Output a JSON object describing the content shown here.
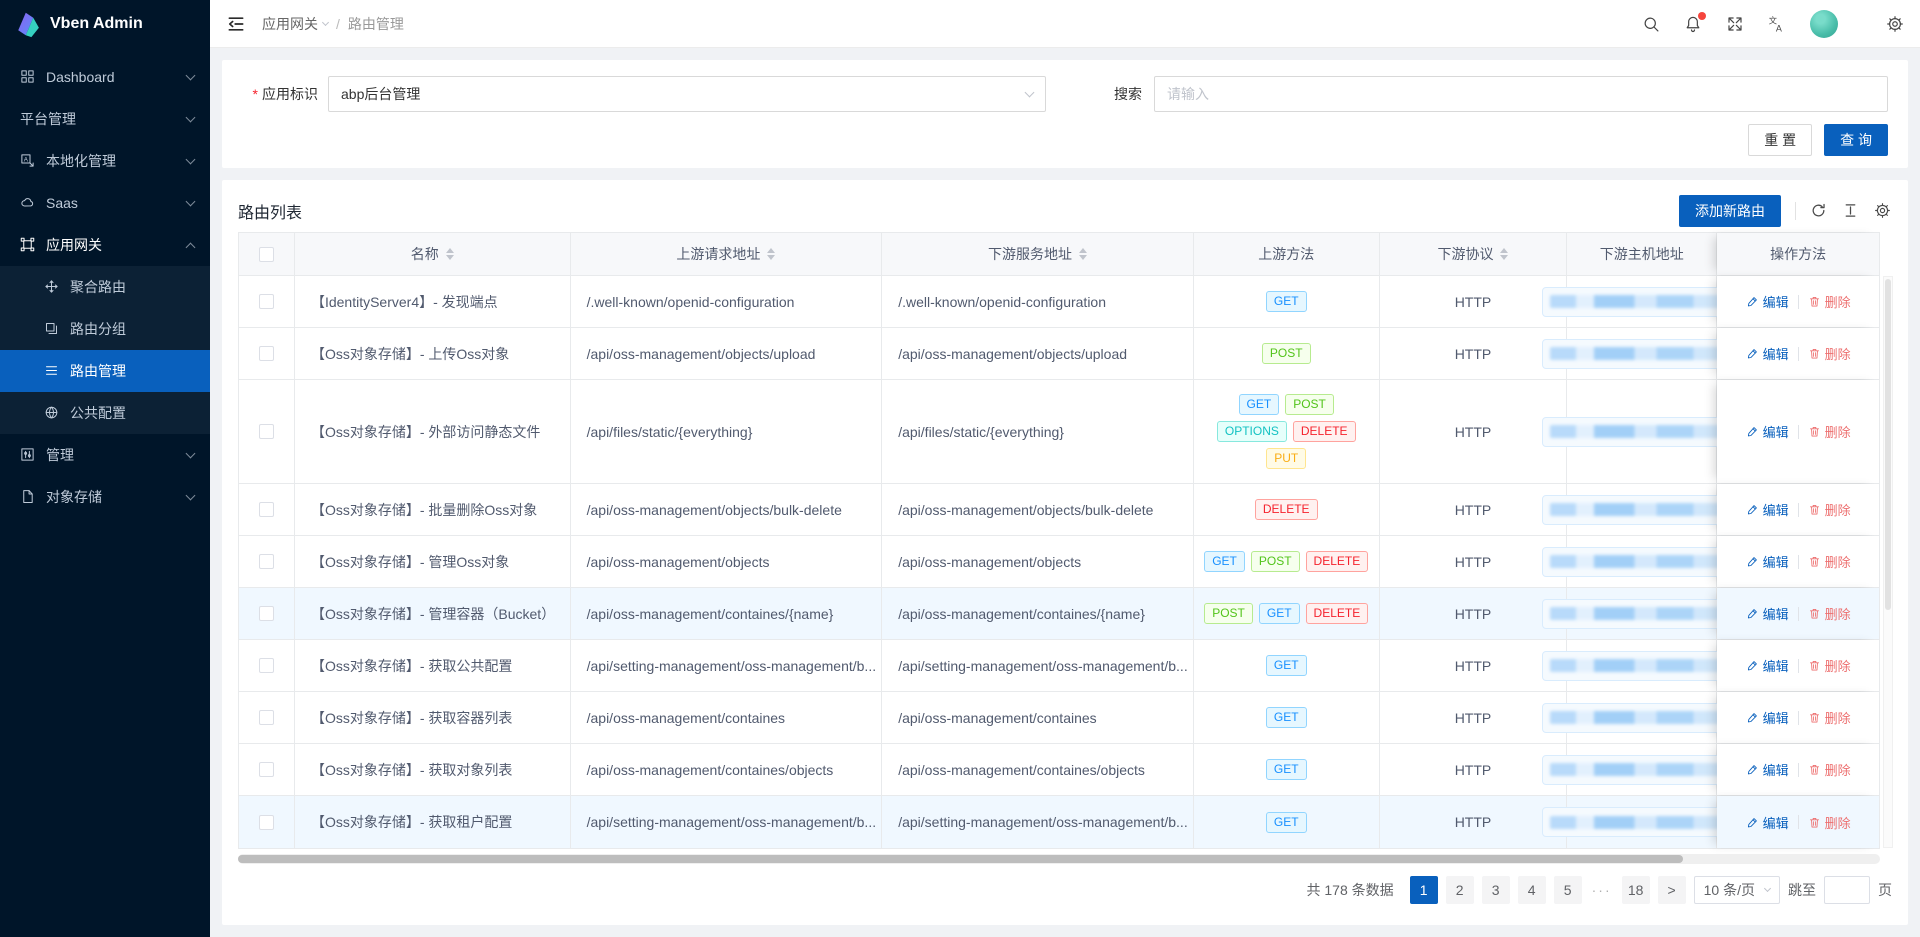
{
  "brand": {
    "name": "Vben Admin"
  },
  "colors": {
    "primary": "#0960bd",
    "danger": "#ed6f6f",
    "sidebar_bg": "#001529",
    "submenu_bg": "#0c2135",
    "notification_dot": "#f5453d"
  },
  "sidebar": {
    "items": [
      {
        "label": "Dashboard",
        "icon": "dashboard-icon",
        "chevron": "down"
      },
      {
        "label": "平台管理",
        "icon": "",
        "chevron": "down"
      },
      {
        "label": "本地化管理",
        "icon": "localization-icon",
        "chevron": "down"
      },
      {
        "label": "Saas",
        "icon": "saas-icon",
        "chevron": "down"
      },
      {
        "label": "应用网关",
        "icon": "gateway-icon",
        "chevron": "up",
        "expanded": true,
        "children": [
          {
            "label": "聚合路由",
            "icon": "aggregate-route-icon"
          },
          {
            "label": "路由分组",
            "icon": "route-group-icon"
          },
          {
            "label": "路由管理",
            "icon": "route-manage-icon",
            "active": true
          },
          {
            "label": "公共配置",
            "icon": "global-config-icon"
          }
        ]
      },
      {
        "label": "管理",
        "icon": "manage-icon",
        "chevron": "down"
      },
      {
        "label": "对象存储",
        "icon": "object-storage-icon",
        "chevron": "down"
      }
    ]
  },
  "header": {
    "breadcrumb": {
      "parent": "应用网关",
      "separator": "/",
      "current": "路由管理"
    },
    "icons": [
      "search",
      "notification",
      "fullscreen",
      "language",
      "avatar",
      "settings"
    ]
  },
  "filter": {
    "required_mark": "*",
    "app_label": "应用标识",
    "app_value": "abp后台管理",
    "search_label": "搜索",
    "search_placeholder": "请输入",
    "reset_label": "重 置",
    "query_label": "查 询"
  },
  "table": {
    "title": "路由列表",
    "add_button": "添加新路由",
    "edit_label": "编辑",
    "delete_label": "删除",
    "columns": [
      {
        "label": "名称",
        "sortable": true
      },
      {
        "label": "上游请求地址",
        "sortable": true
      },
      {
        "label": "下游服务地址",
        "sortable": true
      },
      {
        "label": "上游方法",
        "sortable": false
      },
      {
        "label": "下游协议",
        "sortable": true
      },
      {
        "label": "下游主机地址",
        "sortable": false
      },
      {
        "label": "操作方法",
        "sortable": false
      }
    ],
    "method_colors": {
      "GET": {
        "bg": "#e6f7ff",
        "border": "#91d5ff",
        "text": "#1890ff"
      },
      "POST": {
        "bg": "#f6ffed",
        "border": "#b7eb8f",
        "text": "#52c41a"
      },
      "DELETE": {
        "bg": "#fff1f0",
        "border": "#ffa39e",
        "text": "#f5222d"
      },
      "OPTIONS": {
        "bg": "#e6fffb",
        "border": "#87e8de",
        "text": "#13c2c2"
      },
      "PUT": {
        "bg": "#fffbe6",
        "border": "#ffe58f",
        "text": "#faad14"
      }
    },
    "rows": [
      {
        "name": "【IdentityServer4】- 发现端点",
        "upstream": "/.well-known/openid-configuration",
        "downstream": "/.well-known/openid-configuration",
        "methods": [
          "GET"
        ],
        "protocol": "HTTP"
      },
      {
        "name": "【Oss对象存储】- 上传Oss对象",
        "upstream": "/api/oss-management/objects/upload",
        "downstream": "/api/oss-management/objects/upload",
        "methods": [
          "POST"
        ],
        "protocol": "HTTP"
      },
      {
        "name": "【Oss对象存储】- 外部访问静态文件",
        "upstream": "/api/files/static/{everything}",
        "downstream": "/api/files/static/{everything}",
        "methods": [
          "GET",
          "POST",
          "OPTIONS",
          "DELETE",
          "PUT"
        ],
        "protocol": "HTTP",
        "tall": true
      },
      {
        "name": "【Oss对象存储】- 批量删除Oss对象",
        "upstream": "/api/oss-management/objects/bulk-delete",
        "downstream": "/api/oss-management/objects/bulk-delete",
        "methods": [
          "DELETE"
        ],
        "protocol": "HTTP"
      },
      {
        "name": "【Oss对象存储】- 管理Oss对象",
        "upstream": "/api/oss-management/objects",
        "downstream": "/api/oss-management/objects",
        "methods": [
          "GET",
          "POST",
          "DELETE"
        ],
        "protocol": "HTTP"
      },
      {
        "name": "【Oss对象存储】- 管理容器（Bucket）",
        "upstream": "/api/oss-management/containes/{name}",
        "downstream": "/api/oss-management/containes/{name}",
        "methods": [
          "POST",
          "GET",
          "DELETE"
        ],
        "protocol": "HTTP",
        "highlight": true
      },
      {
        "name": "【Oss对象存储】- 获取公共配置",
        "upstream": "/api/setting-management/oss-management/b...",
        "downstream": "/api/setting-management/oss-management/b...",
        "methods": [
          "GET"
        ],
        "protocol": "HTTP"
      },
      {
        "name": "【Oss对象存储】- 获取容器列表",
        "upstream": "/api/oss-management/containes",
        "downstream": "/api/oss-management/containes",
        "methods": [
          "GET"
        ],
        "protocol": "HTTP"
      },
      {
        "name": "【Oss对象存储】- 获取对象列表",
        "upstream": "/api/oss-management/containes/objects",
        "downstream": "/api/oss-management/containes/objects",
        "methods": [
          "GET"
        ],
        "protocol": "HTTP"
      },
      {
        "name": "【Oss对象存储】- 获取租户配置",
        "upstream": "/api/setting-management/oss-management/b...",
        "downstream": "/api/setting-management/oss-management/b...",
        "methods": [
          "GET"
        ],
        "protocol": "HTTP",
        "highlight": true
      }
    ]
  },
  "pagination": {
    "total": "共 178 条数据",
    "pages": [
      "1",
      "2",
      "3",
      "4",
      "5",
      "···",
      "18"
    ],
    "active_page": "1",
    "next": ">",
    "page_size": "10 条/页",
    "jump_label": "跳至",
    "jump_suffix": "页"
  }
}
